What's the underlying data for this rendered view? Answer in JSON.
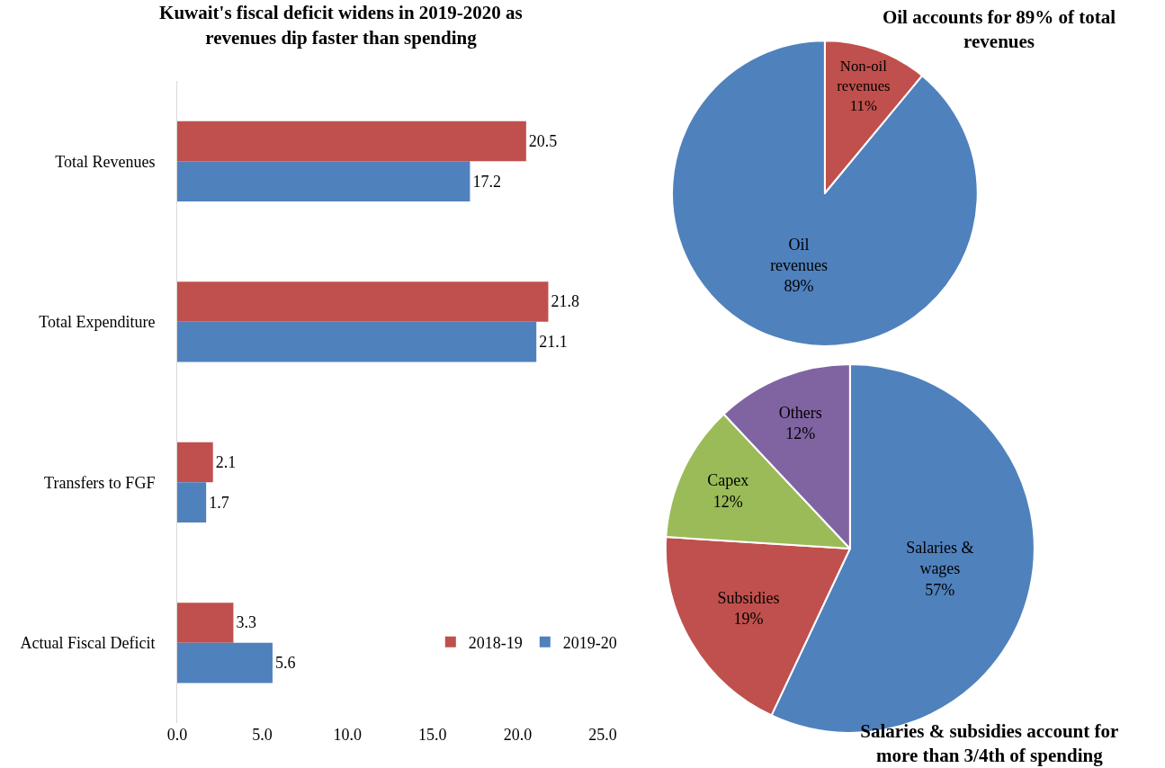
{
  "chart_data": [
    {
      "type": "bar",
      "orientation": "horizontal",
      "title": "Kuwait's fiscal deficit widens in 2019-2020 as revenues dip faster than spending",
      "categories": [
        "Total Revenues",
        "Total Expenditure",
        "Transfers to FGF",
        "Actual Fiscal Deficit"
      ],
      "series": [
        {
          "name": "2018-19",
          "color": "#c0504d",
          "values": [
            20.5,
            21.8,
            2.1,
            3.3
          ]
        },
        {
          "name": "2019-20",
          "color": "#4f81bd",
          "values": [
            17.2,
            21.1,
            1.7,
            5.6
          ]
        }
      ],
      "xlim": [
        0,
        25
      ],
      "xticks": [
        {
          "value": 0,
          "label": "0.0"
        },
        {
          "value": 5,
          "label": "5.0"
        },
        {
          "value": 10,
          "label": "10.0"
        },
        {
          "value": 15,
          "label": "15.0"
        },
        {
          "value": 20,
          "label": "20.0"
        },
        {
          "value": 25,
          "label": "25.0"
        }
      ],
      "data_labels": true,
      "grid": false,
      "legend": "bottom right"
    },
    {
      "type": "pie",
      "title": "Oil accounts for 89% of total revenues",
      "categories": [
        "Non-oil revenues",
        "Oil revenues"
      ],
      "values": [
        11,
        89
      ],
      "value_labels": [
        "11%",
        "89%"
      ],
      "colors": [
        "#c0504d",
        "#4f81bd"
      ],
      "legend": false
    },
    {
      "type": "pie",
      "title": "Salaries & subsidies account for more than 3/4th of spending",
      "categories": [
        "Salaries & wages",
        "Subsidies",
        "Capex",
        "Others"
      ],
      "values": [
        57,
        19,
        12,
        12
      ],
      "value_labels": [
        "57%",
        "19%",
        "12%",
        "12%"
      ],
      "colors": [
        "#4f81bd",
        "#c0504d",
        "#9bbb59",
        "#8064a2"
      ],
      "legend": false
    }
  ]
}
